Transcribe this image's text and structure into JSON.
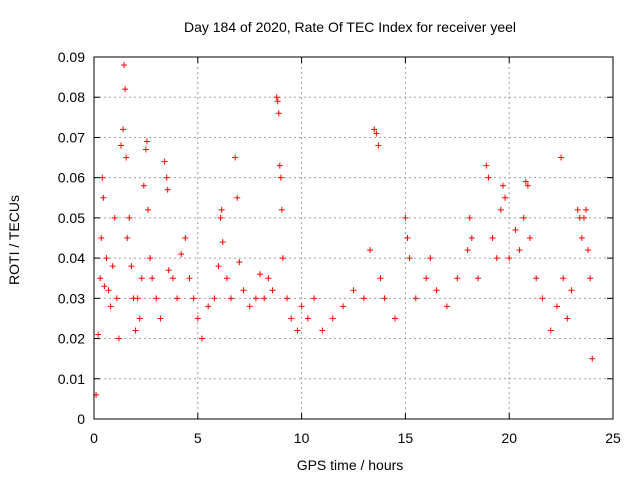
{
  "chart_data": {
    "type": "scatter",
    "title": "Day 184 of 2020, Rate Of TEC Index for receiver yeel",
    "xlabel": "GPS time / hours",
    "ylabel": "ROTI / TECUs",
    "xlim": [
      0,
      25
    ],
    "ylim": [
      0,
      0.09
    ],
    "x_ticks": [
      0,
      5,
      10,
      15,
      20,
      25
    ],
    "x_tick_labels": [
      "0",
      "5",
      "10",
      "15",
      "20",
      "25"
    ],
    "y_ticks": [
      0,
      0.01,
      0.02,
      0.03,
      0.04,
      0.05,
      0.06,
      0.07,
      0.08,
      0.09
    ],
    "y_tick_labels": [
      "0",
      "0.01",
      "0.02",
      "0.03",
      "0.04",
      "0.05",
      "0.06",
      "0.07",
      "0.08",
      "0.09"
    ],
    "grid": true,
    "marker": "+",
    "color": "#ff0000",
    "series": [
      {
        "name": "ROTI",
        "points": [
          [
            0.1,
            0.006
          ],
          [
            0.2,
            0.021
          ],
          [
            0.3,
            0.035
          ],
          [
            0.35,
            0.045
          ],
          [
            0.4,
            0.06
          ],
          [
            0.45,
            0.055
          ],
          [
            0.5,
            0.033
          ],
          [
            0.6,
            0.04
          ],
          [
            0.7,
            0.032
          ],
          [
            0.8,
            0.028
          ],
          [
            0.9,
            0.038
          ],
          [
            1.0,
            0.05
          ],
          [
            1.1,
            0.03
          ],
          [
            1.2,
            0.02
          ],
          [
            1.3,
            0.068
          ],
          [
            1.4,
            0.072
          ],
          [
            1.45,
            0.088
          ],
          [
            1.5,
            0.082
          ],
          [
            1.55,
            0.065
          ],
          [
            1.6,
            0.045
          ],
          [
            1.7,
            0.05
          ],
          [
            1.8,
            0.038
          ],
          [
            1.9,
            0.03
          ],
          [
            2.0,
            0.022
          ],
          [
            2.1,
            0.03
          ],
          [
            2.2,
            0.025
          ],
          [
            2.3,
            0.035
          ],
          [
            2.4,
            0.058
          ],
          [
            2.5,
            0.067
          ],
          [
            2.55,
            0.069
          ],
          [
            2.6,
            0.052
          ],
          [
            2.7,
            0.04
          ],
          [
            2.8,
            0.035
          ],
          [
            3.0,
            0.03
          ],
          [
            3.2,
            0.025
          ],
          [
            3.4,
            0.064
          ],
          [
            3.5,
            0.06
          ],
          [
            3.55,
            0.057
          ],
          [
            3.6,
            0.037
          ],
          [
            3.8,
            0.035
          ],
          [
            4.0,
            0.03
          ],
          [
            4.2,
            0.041
          ],
          [
            4.4,
            0.045
          ],
          [
            4.6,
            0.035
          ],
          [
            4.8,
            0.03
          ],
          [
            5.0,
            0.025
          ],
          [
            5.2,
            0.02
          ],
          [
            5.5,
            0.028
          ],
          [
            5.8,
            0.03
          ],
          [
            6.0,
            0.038
          ],
          [
            6.1,
            0.05
          ],
          [
            6.15,
            0.052
          ],
          [
            6.2,
            0.044
          ],
          [
            6.4,
            0.035
          ],
          [
            6.6,
            0.03
          ],
          [
            6.8,
            0.065
          ],
          [
            6.9,
            0.055
          ],
          [
            7.0,
            0.039
          ],
          [
            7.2,
            0.032
          ],
          [
            7.5,
            0.028
          ],
          [
            7.8,
            0.03
          ],
          [
            8.0,
            0.036
          ],
          [
            8.2,
            0.03
          ],
          [
            8.4,
            0.035
          ],
          [
            8.6,
            0.032
          ],
          [
            8.8,
            0.08
          ],
          [
            8.85,
            0.079
          ],
          [
            8.9,
            0.076
          ],
          [
            8.95,
            0.063
          ],
          [
            9.0,
            0.06
          ],
          [
            9.05,
            0.052
          ],
          [
            9.1,
            0.04
          ],
          [
            9.3,
            0.03
          ],
          [
            9.5,
            0.025
          ],
          [
            9.8,
            0.022
          ],
          [
            10.0,
            0.028
          ],
          [
            10.3,
            0.025
          ],
          [
            10.6,
            0.03
          ],
          [
            11.0,
            0.022
          ],
          [
            11.5,
            0.025
          ],
          [
            12.0,
            0.028
          ],
          [
            12.5,
            0.032
          ],
          [
            13.0,
            0.03
          ],
          [
            13.3,
            0.042
          ],
          [
            13.5,
            0.072
          ],
          [
            13.6,
            0.071
          ],
          [
            13.7,
            0.068
          ],
          [
            13.8,
            0.035
          ],
          [
            14.0,
            0.03
          ],
          [
            14.5,
            0.025
          ],
          [
            15.0,
            0.05
          ],
          [
            15.1,
            0.045
          ],
          [
            15.2,
            0.04
          ],
          [
            15.5,
            0.03
          ],
          [
            16.0,
            0.035
          ],
          [
            16.2,
            0.04
          ],
          [
            16.5,
            0.032
          ],
          [
            17.0,
            0.028
          ],
          [
            17.5,
            0.035
          ],
          [
            18.0,
            0.042
          ],
          [
            18.1,
            0.05
          ],
          [
            18.2,
            0.045
          ],
          [
            18.5,
            0.035
          ],
          [
            18.9,
            0.063
          ],
          [
            19.0,
            0.06
          ],
          [
            19.2,
            0.045
          ],
          [
            19.4,
            0.04
          ],
          [
            19.6,
            0.052
          ],
          [
            19.7,
            0.058
          ],
          [
            19.8,
            0.055
          ],
          [
            20.0,
            0.04
          ],
          [
            20.3,
            0.047
          ],
          [
            20.5,
            0.042
          ],
          [
            20.7,
            0.05
          ],
          [
            20.8,
            0.059
          ],
          [
            20.9,
            0.058
          ],
          [
            21.0,
            0.045
          ],
          [
            21.3,
            0.035
          ],
          [
            21.6,
            0.03
          ],
          [
            22.0,
            0.022
          ],
          [
            22.3,
            0.028
          ],
          [
            22.5,
            0.065
          ],
          [
            22.6,
            0.035
          ],
          [
            22.8,
            0.025
          ],
          [
            23.0,
            0.032
          ],
          [
            23.3,
            0.052
          ],
          [
            23.4,
            0.05
          ],
          [
            23.5,
            0.045
          ],
          [
            23.6,
            0.05
          ],
          [
            23.7,
            0.052
          ],
          [
            23.8,
            0.042
          ],
          [
            23.9,
            0.035
          ],
          [
            24.0,
            0.015
          ]
        ]
      }
    ]
  }
}
